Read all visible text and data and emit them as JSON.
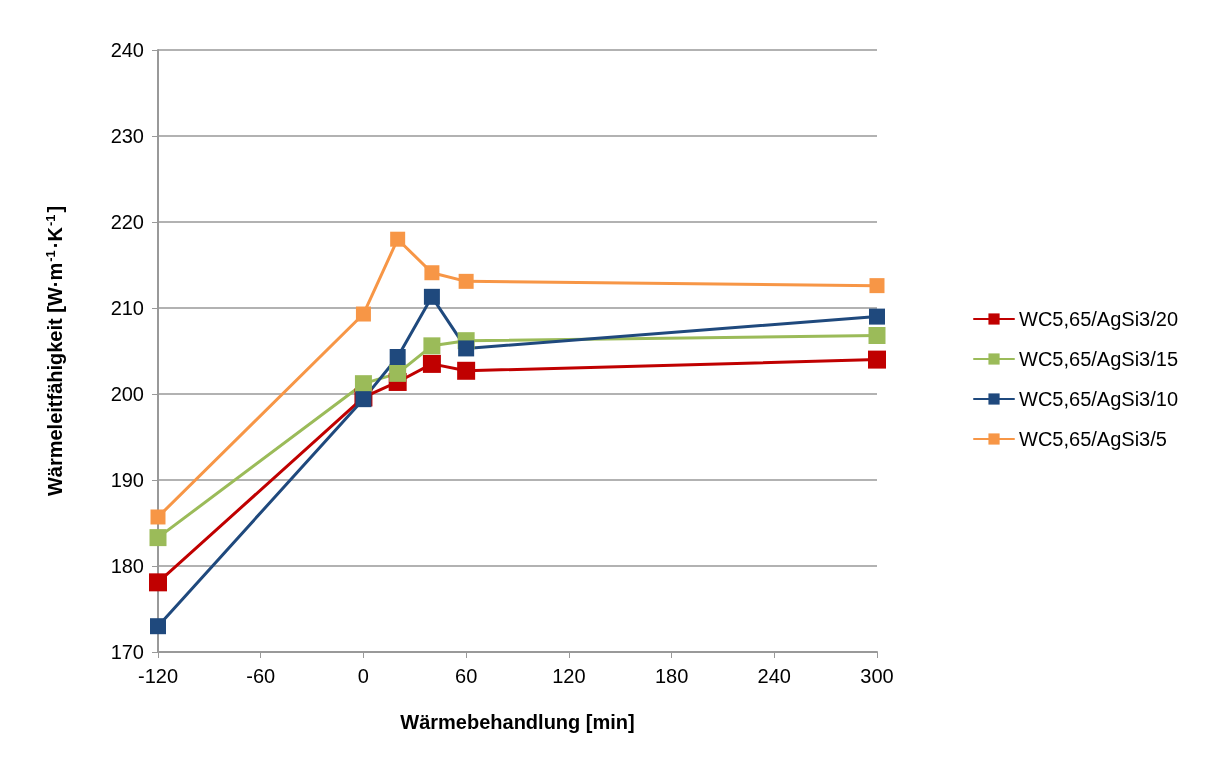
{
  "chart_data": {
    "type": "line",
    "xlabel": "Wärmebehandlung [min]",
    "ylabel": "Wärmeleitfähigkeit [W·m$^{-1}$·K$^{-1}$]",
    "x": [
      -120,
      0,
      20,
      40,
      60,
      300
    ],
    "xlim": [
      -120,
      300
    ],
    "xticks": [
      -120,
      -60,
      0,
      60,
      120,
      180,
      240,
      300
    ],
    "ylim": [
      170,
      240
    ],
    "yticks": [
      170,
      180,
      190,
      200,
      210,
      220,
      230,
      240
    ],
    "grid": "y",
    "legend": "right",
    "marker": "square",
    "line_style": "solid",
    "series": [
      {
        "name": "WC5,65/AgSi3/20",
        "color": "#c00000",
        "values": [
          178.1,
          199.6,
          201.4,
          203.5,
          202.7,
          204.0
        ]
      },
      {
        "name": "WC5,65/AgSi3/15",
        "color": "#9bbb59",
        "values": [
          183.3,
          201.2,
          202.4,
          205.6,
          206.2,
          206.8
        ]
      },
      {
        "name": "WC5,65/AgSi3/10",
        "color": "#1f497d",
        "values": [
          173.0,
          199.4,
          204.3,
          211.3,
          205.3,
          209.0
        ]
      },
      {
        "name": "WC5,65/AgSi3/5",
        "color": "#f79646",
        "values": [
          185.7,
          209.3,
          218.0,
          214.1,
          213.1,
          212.6
        ]
      }
    ]
  }
}
